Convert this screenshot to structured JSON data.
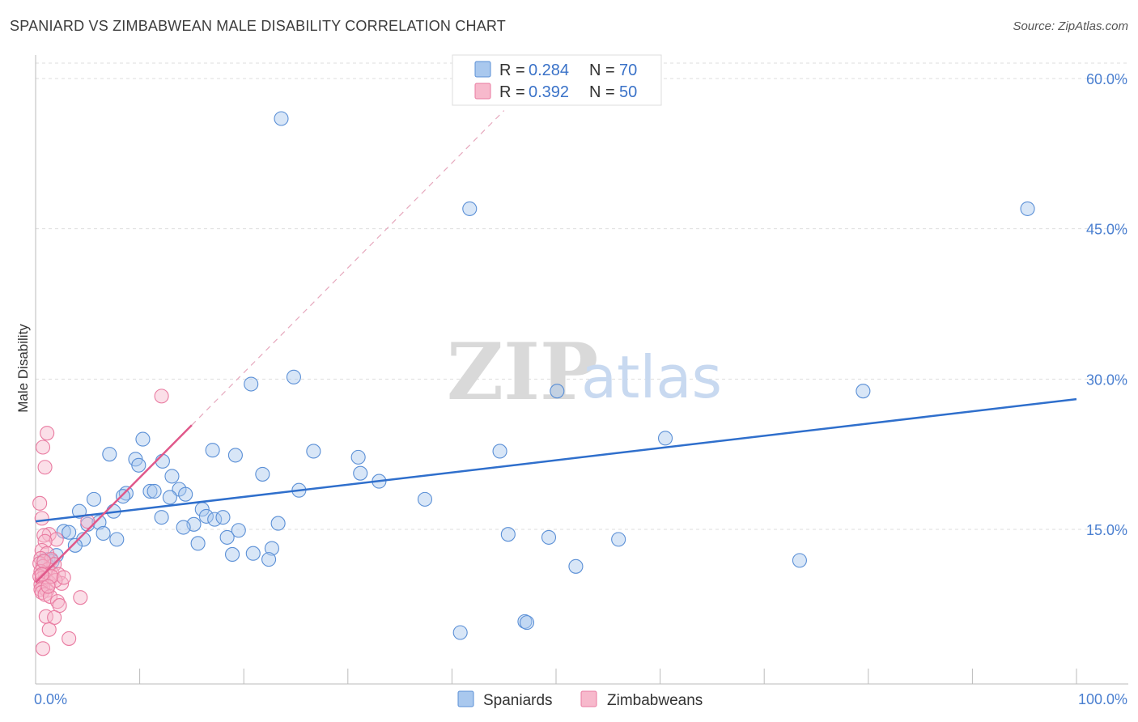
{
  "title": "SPANIARD VS ZIMBABWEAN MALE DISABILITY CORRELATION CHART",
  "source": "Source: ZipAtlas.com",
  "watermark": {
    "zip": "ZIP",
    "atlas": "atlas"
  },
  "colors": {
    "blue_fill": "#a9c8ee",
    "blue_stroke": "#5a8fd6",
    "blue_line": "#2f6fcc",
    "pink_fill": "#f7b9cc",
    "pink_stroke": "#e97aa0",
    "pink_line": "#e0588a",
    "grid": "#dddddd",
    "axis_text": "#4a7fd0"
  },
  "legend": {
    "r_label": "R =",
    "n_label": "N =",
    "rows": [
      {
        "series": "Spaniards",
        "r": "0.284",
        "n": "70"
      },
      {
        "series": "Zimbabweans",
        "r": "0.392",
        "n": "50"
      }
    ]
  },
  "chart_data": {
    "type": "scatter",
    "title": "SPANIARD VS ZIMBABWEAN MALE DISABILITY CORRELATION CHART",
    "xlabel": "",
    "ylabel": "Male Disability",
    "xlim": [
      0,
      100
    ],
    "ylim": [
      0,
      62
    ],
    "x_tick_labels": [
      {
        "value": 0,
        "label": "0.0%"
      },
      {
        "value": 100,
        "label": "100.0%"
      }
    ],
    "y_tick_labels": [
      {
        "value": 15,
        "label": "15.0%"
      },
      {
        "value": 30,
        "label": "30.0%"
      },
      {
        "value": 45,
        "label": "45.0%"
      },
      {
        "value": 60,
        "label": "60.0%"
      }
    ],
    "series": [
      {
        "name": "Spaniards",
        "color": "#a9c8ee",
        "trend": {
          "x": [
            0,
            100
          ],
          "y": [
            15.8,
            28.0
          ]
        },
        "points": [
          {
            "x": 23.6,
            "y": 56.0
          },
          {
            "x": 41.7,
            "y": 47.0
          },
          {
            "x": 95.3,
            "y": 47.0
          },
          {
            "x": 24.8,
            "y": 30.2
          },
          {
            "x": 20.7,
            "y": 29.5
          },
          {
            "x": 50.1,
            "y": 28.8
          },
          {
            "x": 79.5,
            "y": 28.8
          },
          {
            "x": 10.3,
            "y": 24.0
          },
          {
            "x": 60.5,
            "y": 24.1
          },
          {
            "x": 7.1,
            "y": 22.5
          },
          {
            "x": 17.0,
            "y": 22.9
          },
          {
            "x": 19.2,
            "y": 22.4
          },
          {
            "x": 26.7,
            "y": 22.8
          },
          {
            "x": 31.0,
            "y": 22.2
          },
          {
            "x": 44.6,
            "y": 22.8
          },
          {
            "x": 9.6,
            "y": 22.0
          },
          {
            "x": 12.2,
            "y": 21.8
          },
          {
            "x": 9.9,
            "y": 21.4
          },
          {
            "x": 21.8,
            "y": 20.5
          },
          {
            "x": 31.2,
            "y": 20.6
          },
          {
            "x": 13.1,
            "y": 20.3
          },
          {
            "x": 33.0,
            "y": 19.8
          },
          {
            "x": 8.7,
            "y": 18.6
          },
          {
            "x": 11.0,
            "y": 18.8
          },
          {
            "x": 11.4,
            "y": 18.8
          },
          {
            "x": 13.8,
            "y": 19.0
          },
          {
            "x": 8.4,
            "y": 18.3
          },
          {
            "x": 12.9,
            "y": 18.2
          },
          {
            "x": 14.4,
            "y": 18.5
          },
          {
            "x": 25.3,
            "y": 18.9
          },
          {
            "x": 5.6,
            "y": 18.0
          },
          {
            "x": 37.4,
            "y": 18.0
          },
          {
            "x": 4.2,
            "y": 16.8
          },
          {
            "x": 7.5,
            "y": 16.8
          },
          {
            "x": 16.0,
            "y": 17.0
          },
          {
            "x": 16.4,
            "y": 16.3
          },
          {
            "x": 17.2,
            "y": 16.0
          },
          {
            "x": 12.1,
            "y": 16.2
          },
          {
            "x": 18.0,
            "y": 16.2
          },
          {
            "x": 5.0,
            "y": 15.5
          },
          {
            "x": 6.1,
            "y": 15.7
          },
          {
            "x": 15.2,
            "y": 15.5
          },
          {
            "x": 23.3,
            "y": 15.6
          },
          {
            "x": 14.2,
            "y": 15.2
          },
          {
            "x": 2.7,
            "y": 14.8
          },
          {
            "x": 3.2,
            "y": 14.7
          },
          {
            "x": 6.5,
            "y": 14.6
          },
          {
            "x": 19.5,
            "y": 14.9
          },
          {
            "x": 45.4,
            "y": 14.5
          },
          {
            "x": 4.6,
            "y": 14.0
          },
          {
            "x": 7.8,
            "y": 14.0
          },
          {
            "x": 18.4,
            "y": 14.2
          },
          {
            "x": 49.3,
            "y": 14.2
          },
          {
            "x": 56.0,
            "y": 14.0
          },
          {
            "x": 15.6,
            "y": 13.6
          },
          {
            "x": 3.8,
            "y": 13.4
          },
          {
            "x": 22.7,
            "y": 13.1
          },
          {
            "x": 2.0,
            "y": 12.4
          },
          {
            "x": 18.9,
            "y": 12.5
          },
          {
            "x": 20.9,
            "y": 12.6
          },
          {
            "x": 1.2,
            "y": 12.0
          },
          {
            "x": 1.6,
            "y": 11.8
          },
          {
            "x": 22.4,
            "y": 12.0
          },
          {
            "x": 73.4,
            "y": 11.9
          },
          {
            "x": 51.9,
            "y": 11.3
          },
          {
            "x": 1.0,
            "y": 11.6
          },
          {
            "x": 47.0,
            "y": 5.8
          },
          {
            "x": 47.2,
            "y": 5.7
          },
          {
            "x": 40.8,
            "y": 4.7
          },
          {
            "x": 0.8,
            "y": 11.9
          }
        ]
      },
      {
        "name": "Zimbabweans",
        "color": "#f7b9cc",
        "trend": {
          "x": [
            0,
            15
          ],
          "y": [
            9.7,
            25.4
          ]
        },
        "trend_extension": {
          "x": [
            15,
            45
          ],
          "y": [
            25.4,
            56.8
          ]
        },
        "points": [
          {
            "x": 12.1,
            "y": 28.3
          },
          {
            "x": 1.1,
            "y": 24.6
          },
          {
            "x": 0.7,
            "y": 23.2
          },
          {
            "x": 0.9,
            "y": 21.2
          },
          {
            "x": 0.4,
            "y": 17.6
          },
          {
            "x": 0.6,
            "y": 16.1
          },
          {
            "x": 5.0,
            "y": 15.8
          },
          {
            "x": 1.3,
            "y": 14.5
          },
          {
            "x": 0.8,
            "y": 14.4
          },
          {
            "x": 2.0,
            "y": 14.0
          },
          {
            "x": 0.9,
            "y": 13.8
          },
          {
            "x": 0.6,
            "y": 12.9
          },
          {
            "x": 1.1,
            "y": 12.6
          },
          {
            "x": 0.5,
            "y": 12.1
          },
          {
            "x": 1.5,
            "y": 12.0
          },
          {
            "x": 1.8,
            "y": 11.5
          },
          {
            "x": 0.4,
            "y": 11.6
          },
          {
            "x": 0.7,
            "y": 11.3
          },
          {
            "x": 1.2,
            "y": 11.0
          },
          {
            "x": 0.5,
            "y": 10.8
          },
          {
            "x": 0.9,
            "y": 10.6
          },
          {
            "x": 1.6,
            "y": 10.6
          },
          {
            "x": 2.2,
            "y": 10.5
          },
          {
            "x": 0.4,
            "y": 10.3
          },
          {
            "x": 0.6,
            "y": 10.1
          },
          {
            "x": 1.0,
            "y": 10.0
          },
          {
            "x": 0.8,
            "y": 9.8
          },
          {
            "x": 1.3,
            "y": 9.7
          },
          {
            "x": 2.5,
            "y": 9.6
          },
          {
            "x": 0.5,
            "y": 9.5
          },
          {
            "x": 1.9,
            "y": 9.9
          },
          {
            "x": 0.7,
            "y": 9.2
          },
          {
            "x": 0.5,
            "y": 9.0
          },
          {
            "x": 1.1,
            "y": 8.9
          },
          {
            "x": 0.6,
            "y": 8.7
          },
          {
            "x": 0.9,
            "y": 8.5
          },
          {
            "x": 1.4,
            "y": 8.3
          },
          {
            "x": 4.3,
            "y": 8.2
          },
          {
            "x": 2.1,
            "y": 7.8
          },
          {
            "x": 2.3,
            "y": 7.4
          },
          {
            "x": 1.0,
            "y": 6.3
          },
          {
            "x": 1.8,
            "y": 6.2
          },
          {
            "x": 1.3,
            "y": 5.0
          },
          {
            "x": 3.2,
            "y": 4.1
          },
          {
            "x": 0.7,
            "y": 3.1
          },
          {
            "x": 1.5,
            "y": 10.3
          },
          {
            "x": 0.8,
            "y": 11.8
          },
          {
            "x": 1.2,
            "y": 9.3
          },
          {
            "x": 0.6,
            "y": 10.5
          },
          {
            "x": 2.7,
            "y": 10.2
          }
        ]
      }
    ]
  }
}
